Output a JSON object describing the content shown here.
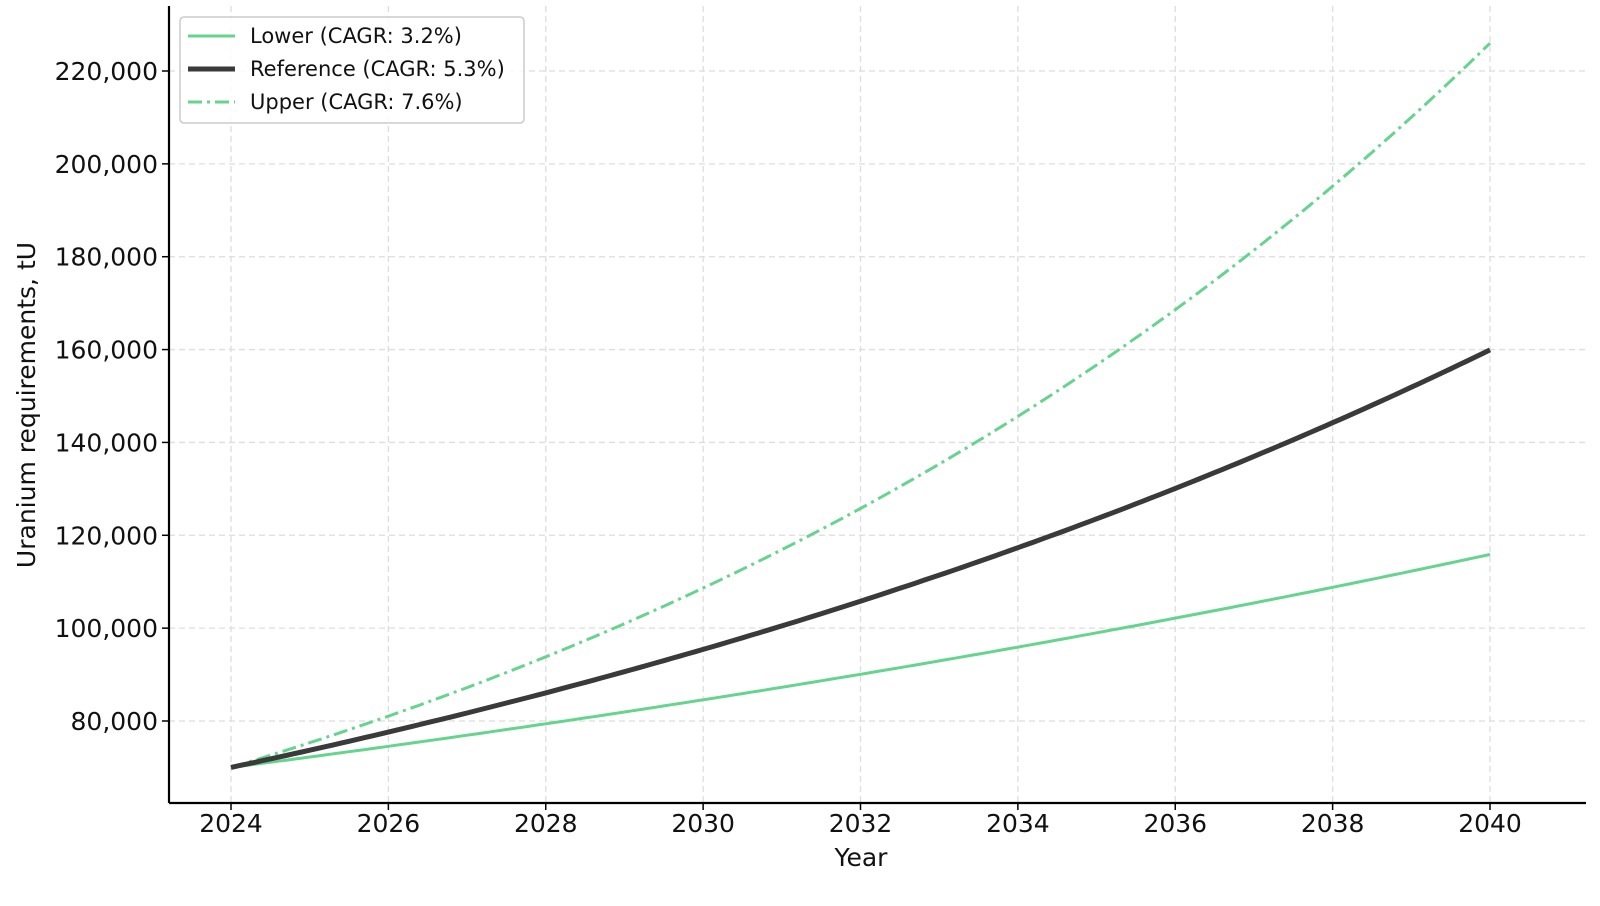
{
  "chart_data": {
    "type": "line",
    "title": "",
    "xlabel": "Year",
    "ylabel": "Uranium requirements, tU",
    "x": [
      2024,
      2025,
      2026,
      2027,
      2028,
      2029,
      2030,
      2031,
      2032,
      2033,
      2034,
      2035,
      2036,
      2037,
      2038,
      2039,
      2040
    ],
    "xticks": [
      2024,
      2026,
      2028,
      2030,
      2032,
      2034,
      2036,
      2038,
      2040
    ],
    "yticks": [
      80000,
      100000,
      120000,
      140000,
      160000,
      180000,
      200000,
      220000
    ],
    "ytick_labels": [
      "80,000",
      "100,000",
      "120,000",
      "140,000",
      "160,000",
      "180,000",
      "200,000",
      "220,000"
    ],
    "xlim": [
      2023.2,
      2040.8
    ],
    "ylim": [
      62000,
      235000
    ],
    "grid": true,
    "legend_position": "upper left",
    "series": [
      {
        "name": "Lower (CAGR: 3.2%)",
        "color": "#66d48f",
        "style": "solid",
        "width": 3,
        "values": [
          70000,
          72240,
          74552,
          76938,
          79400,
          81941,
          84563,
          87269,
          90061,
          92943,
          95917,
          98987,
          102154,
          105423,
          108797,
          112278,
          115871
        ]
      },
      {
        "name": "Reference (CAGR: 5.3%)",
        "color": "#3a3a3a",
        "style": "solid",
        "width": 5,
        "values": [
          70000,
          73710,
          77617,
          81730,
          86062,
          90623,
          95426,
          100484,
          105810,
          111418,
          117323,
          123541,
          130089,
          136983,
          144243,
          151888,
          159938
        ]
      },
      {
        "name": "Upper (CAGR: 7.6%)",
        "color": "#66d48f",
        "style": "dashdot",
        "width": 3,
        "values": [
          70000,
          75320,
          81044,
          87204,
          93831,
          100962,
          108636,
          116892,
          125776,
          135335,
          145620,
          156687,
          168596,
          181409,
          195196,
          210031,
          225993
        ]
      }
    ]
  },
  "legend": {
    "items": [
      {
        "label": "Lower (CAGR: 3.2%)"
      },
      {
        "label": "Reference (CAGR: 5.3%)"
      },
      {
        "label": "Upper (CAGR: 7.6%)"
      }
    ]
  }
}
